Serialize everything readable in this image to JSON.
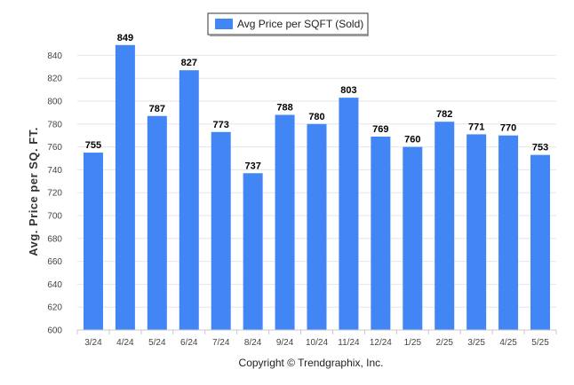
{
  "chart_data": {
    "type": "bar",
    "categories": [
      "3/24",
      "4/24",
      "5/24",
      "6/24",
      "7/24",
      "8/24",
      "9/24",
      "10/24",
      "11/24",
      "12/24",
      "1/25",
      "2/25",
      "3/25",
      "4/25",
      "5/25"
    ],
    "series": [
      {
        "name": "Avg Price per SQFT (Sold)",
        "values": [
          755,
          849,
          787,
          827,
          773,
          737,
          788,
          780,
          803,
          769,
          760,
          782,
          771,
          770,
          753
        ]
      }
    ],
    "title": "",
    "xlabel": "",
    "ylabel": "Avg. Price per SQ. FT.",
    "ylim": [
      600,
      850
    ],
    "yticks": [
      600,
      620,
      640,
      660,
      680,
      700,
      720,
      740,
      760,
      780,
      800,
      820,
      840
    ],
    "grid": true,
    "legend": "top-center",
    "data_labels": true,
    "bar_color": "#4285f4"
  },
  "footer": {
    "copyright": "Copyright © Trendgraphix, Inc."
  }
}
